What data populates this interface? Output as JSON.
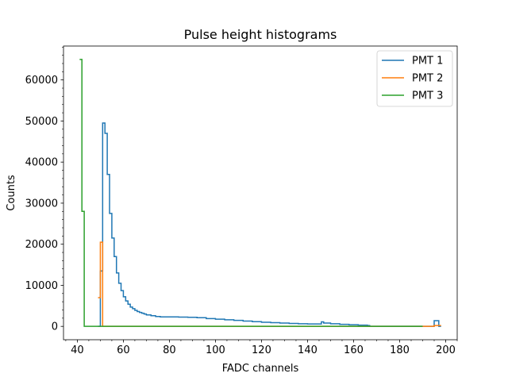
{
  "chart_data": {
    "type": "line",
    "drawstyle": "steps-post",
    "title": "Pulse height histograms",
    "xlabel": "FADC channels",
    "ylabel": "Counts",
    "xlim": [
      34,
      205
    ],
    "ylim": [
      -3250,
      68250
    ],
    "xticks": [
      40,
      60,
      80,
      100,
      120,
      140,
      160,
      180,
      200
    ],
    "yticks": [
      0,
      10000,
      20000,
      30000,
      40000,
      50000,
      60000
    ],
    "x_minor_step": 5,
    "y_minor_step": 2000,
    "grid": false,
    "legend_position": "top-right",
    "series": [
      {
        "name": "PMT 1",
        "color": "#1f77b4",
        "x": [
          49,
          50,
          51,
          52,
          53,
          54,
          55,
          56,
          57,
          58,
          59,
          60,
          61,
          62,
          63,
          64,
          65,
          66,
          67,
          68,
          69,
          70,
          72,
          74,
          76,
          80,
          84,
          88,
          92,
          96,
          100,
          104,
          108,
          112,
          116,
          120,
          124,
          128,
          132,
          136,
          140,
          144,
          146,
          147,
          150,
          154,
          158,
          162,
          166,
          167,
          195,
          197,
          198
        ],
        "values": [
          0,
          13500,
          49500,
          47000,
          37000,
          27500,
          21500,
          17000,
          13000,
          10500,
          8700,
          7200,
          6200,
          5400,
          4700,
          4300,
          3900,
          3600,
          3400,
          3200,
          3000,
          2800,
          2600,
          2400,
          2300,
          2300,
          2250,
          2200,
          2100,
          1900,
          1750,
          1600,
          1450,
          1300,
          1150,
          1000,
          900,
          800,
          700,
          650,
          600,
          600,
          1100,
          800,
          650,
          500,
          400,
          300,
          200,
          0,
          1400,
          0,
          0
        ]
      },
      {
        "name": "PMT 2",
        "color": "#ff7f0e",
        "x": [
          49,
          50,
          51,
          52,
          190,
          195,
          198
        ],
        "values": [
          7000,
          20500,
          0,
          0,
          0,
          200,
          200
        ]
      },
      {
        "name": "PMT 3",
        "color": "#2ca02c",
        "x": [
          41,
          42,
          43,
          190
        ],
        "values": [
          65000,
          28000,
          0,
          0
        ]
      }
    ]
  }
}
